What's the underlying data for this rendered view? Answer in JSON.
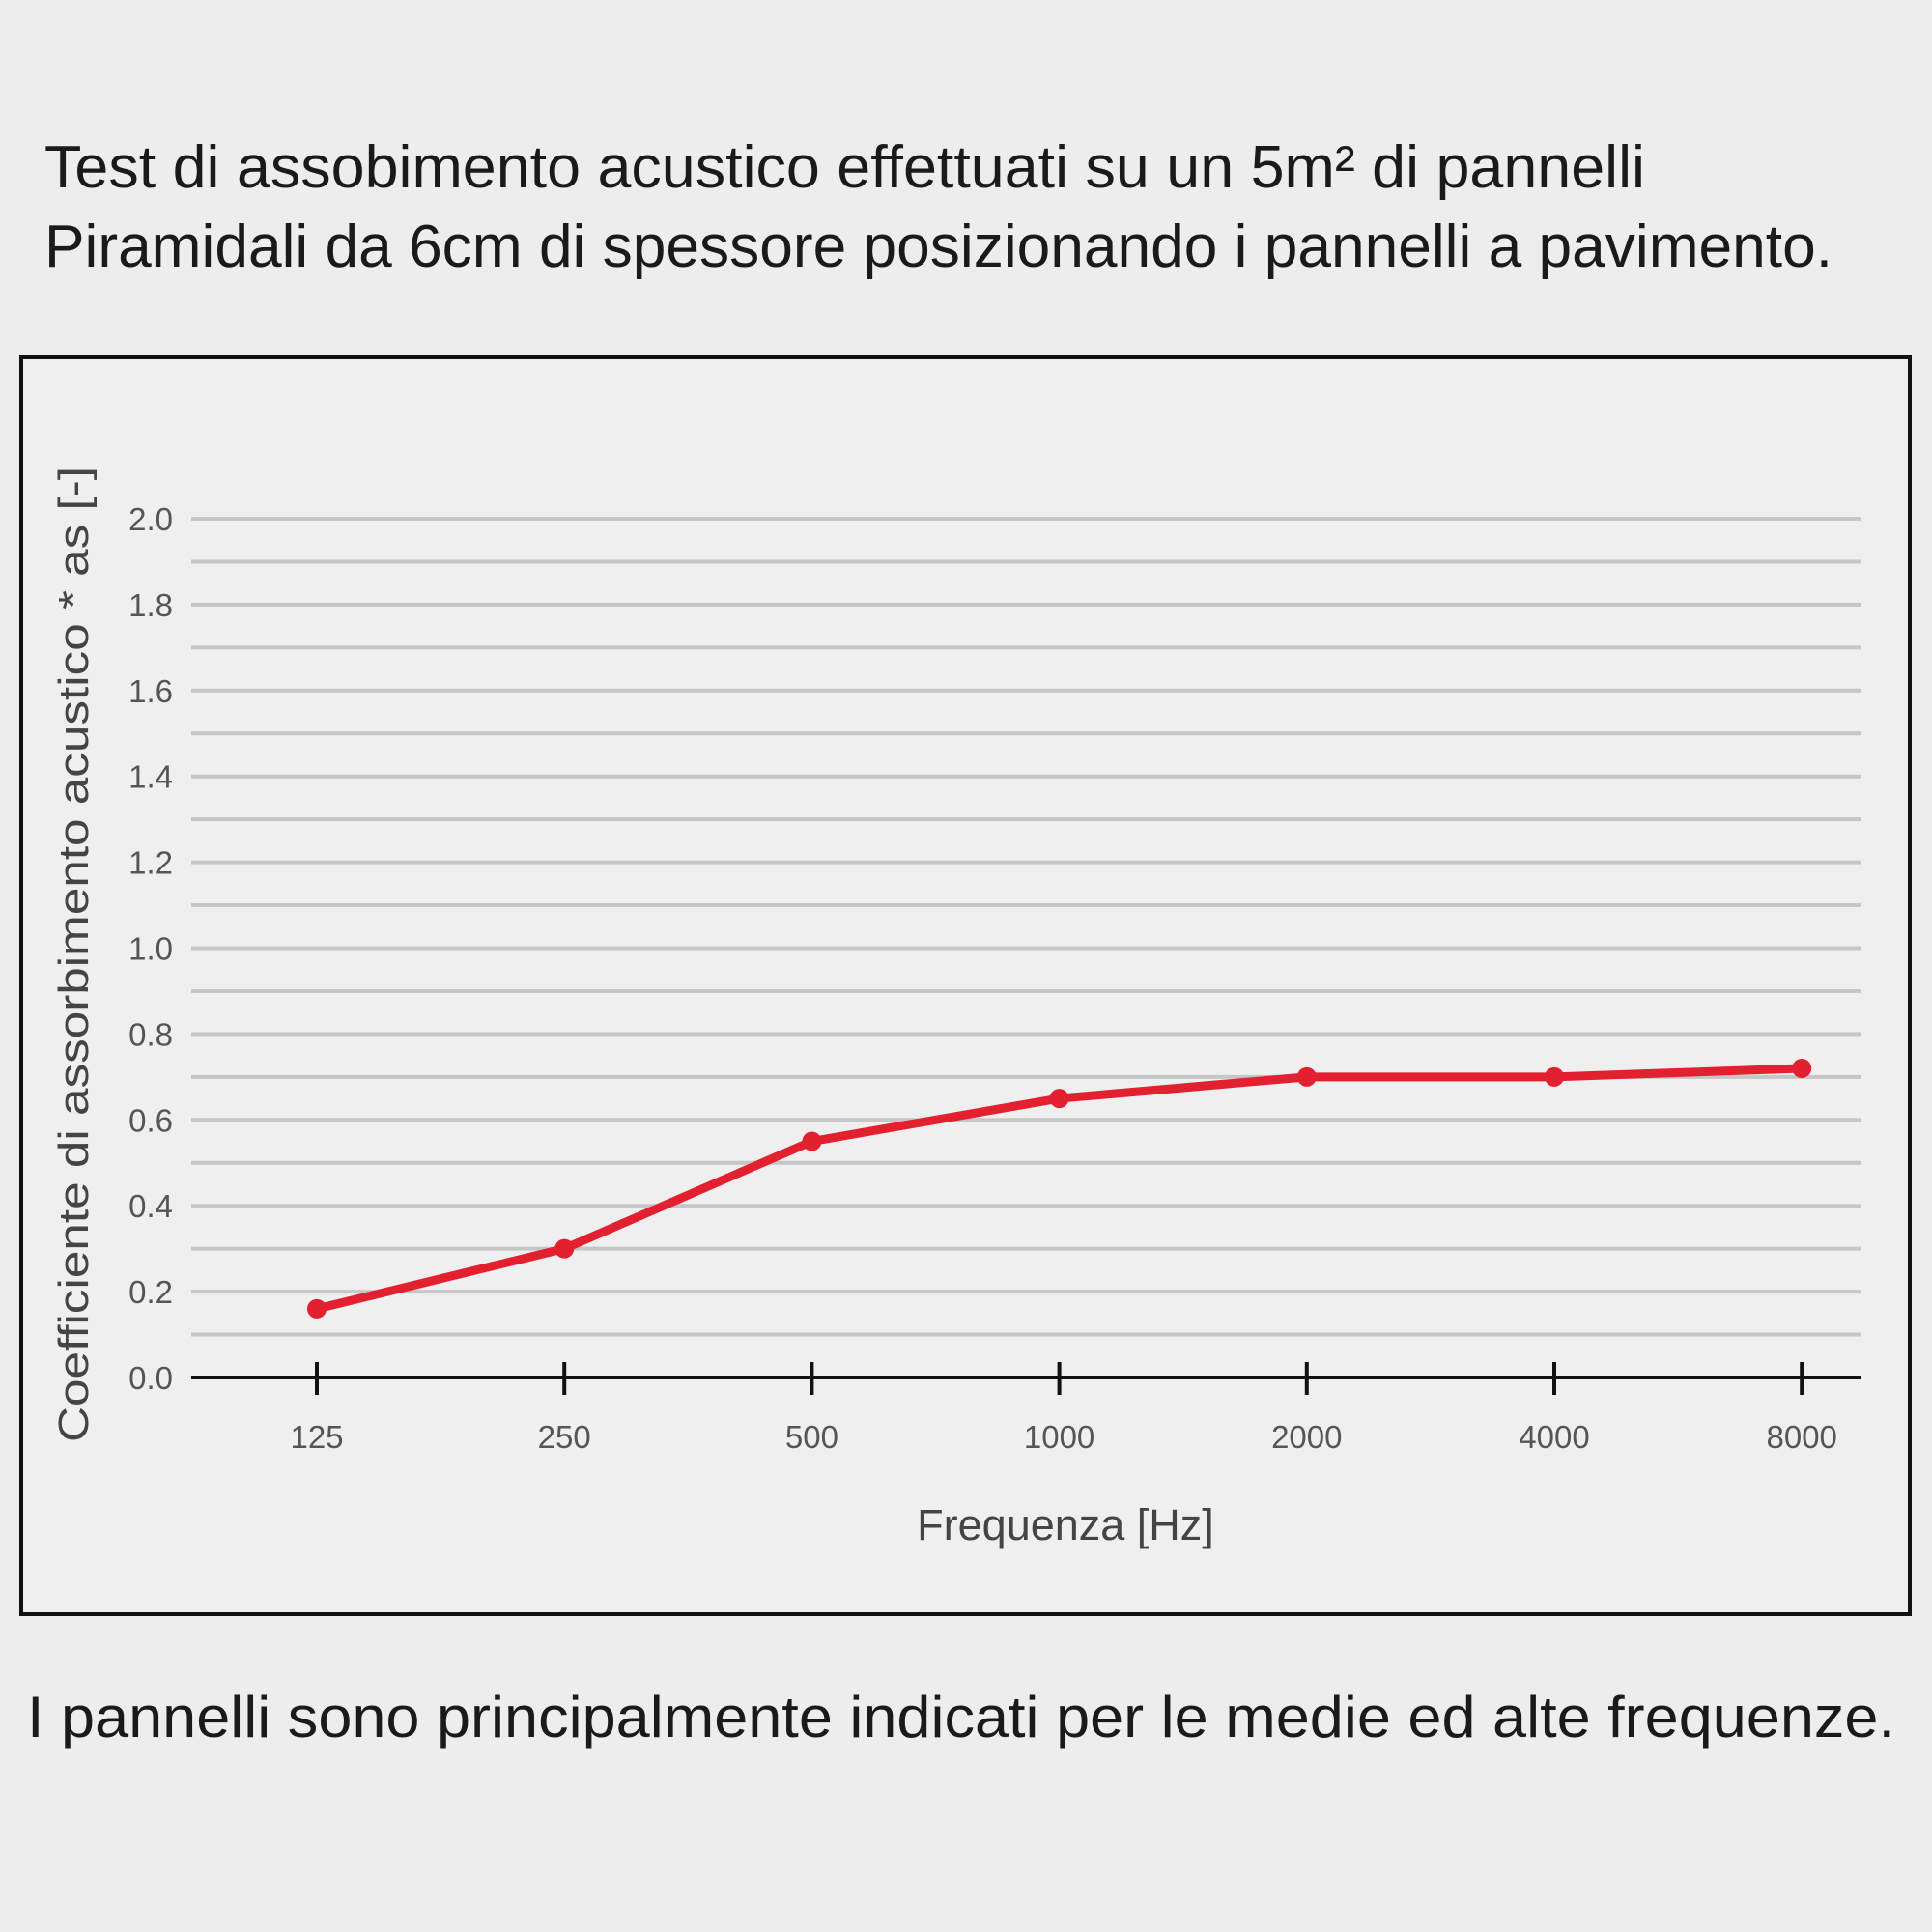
{
  "chart_data": {
    "type": "line",
    "title": [
      "Test di assobimento acustico effettuati su un 5m² di pannelli",
      "Piramidali da 6cm di spessore posizionando i pannelli a pavimento."
    ],
    "note": "I pannelli sono principalmente indicati per le medie ed alte frequenze.",
    "xlabel": "Frequenza [Hz]",
    "ylabel": "Coefficiente di assorbimento acustico * as [-]",
    "categories": [
      "125",
      "250",
      "500",
      "1000",
      "2000",
      "4000",
      "8000"
    ],
    "series": [
      {
        "color": "#e3202f",
        "values": [
          0.16,
          0.3,
          0.55,
          0.65,
          0.7,
          0.7,
          0.72
        ]
      }
    ],
    "ylim": [
      0,
      2
    ],
    "yticks": [
      {
        "value": 0,
        "label": "0.0"
      },
      {
        "value": 0.2,
        "label": "0.2"
      },
      {
        "value": 0.4,
        "label": "0.4"
      },
      {
        "value": 0.6,
        "label": "0.6"
      },
      {
        "value": 0.8,
        "label": "0.8"
      },
      {
        "value": 1,
        "label": "1.0"
      },
      {
        "value": 1.2,
        "label": "1.2"
      },
      {
        "value": 1.4,
        "label": "1.4"
      },
      {
        "value": 1.6,
        "label": "1.6"
      },
      {
        "value": 1.8,
        "label": "1.8"
      },
      {
        "value": 2,
        "label": "2.0"
      }
    ],
    "minor_yticks": [
      0.1,
      0.3,
      0.5,
      0.7,
      0.9,
      1.1,
      1.3,
      1.5,
      1.7,
      1.9
    ],
    "grid": true
  }
}
